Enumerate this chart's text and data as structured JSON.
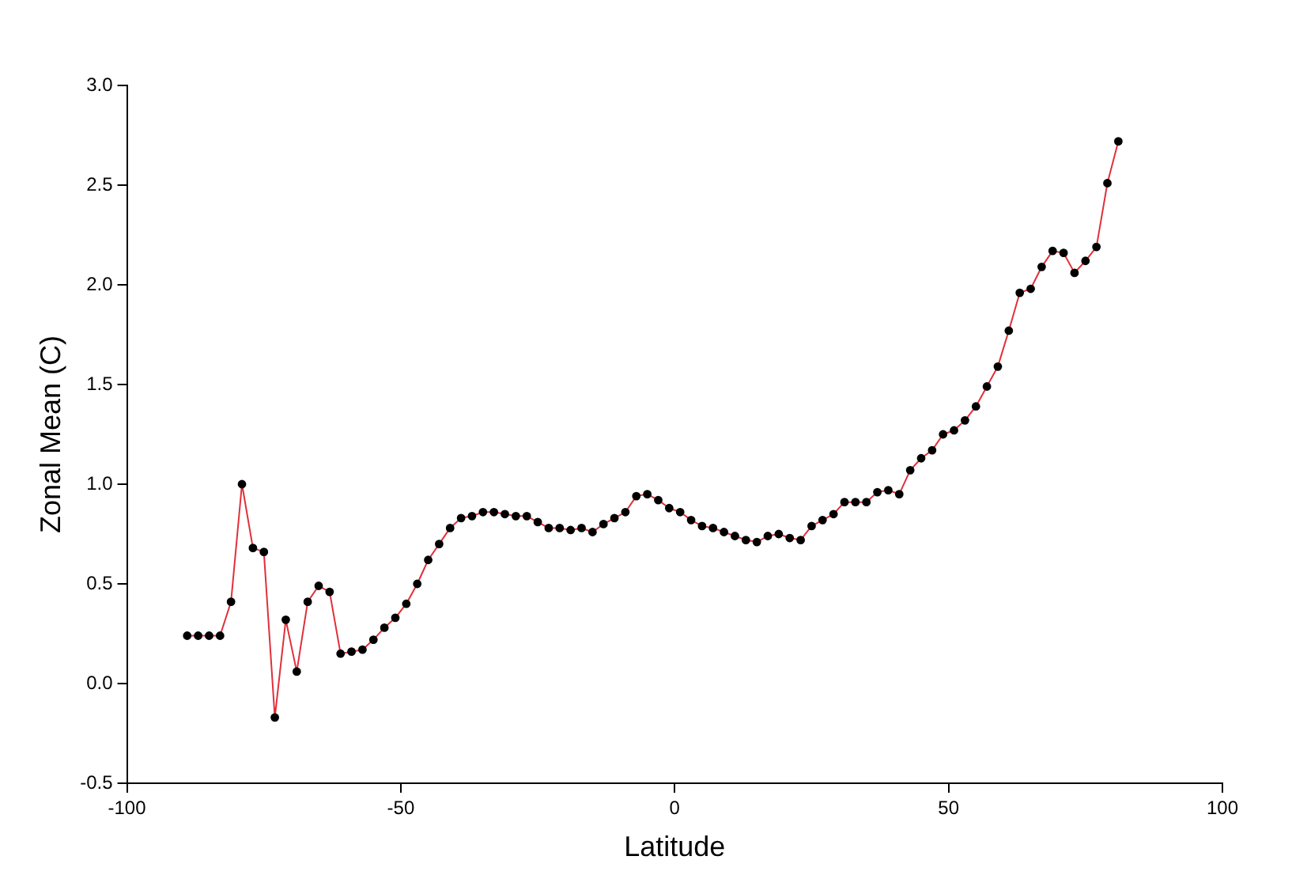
{
  "chart_data": {
    "type": "line",
    "xlabel": "Latitude",
    "ylabel": "Zonal Mean (C)",
    "x": [
      -89,
      -87,
      -85,
      -83,
      -81,
      -79,
      -77,
      -75,
      -73,
      -71,
      -69,
      -67,
      -65,
      -63,
      -61,
      -59,
      -57,
      -55,
      -53,
      -51,
      -49,
      -47,
      -45,
      -43,
      -41,
      -39,
      -37,
      -35,
      -33,
      -31,
      -29,
      -27,
      -25,
      -23,
      -21,
      -19,
      -17,
      -15,
      -13,
      -11,
      -9,
      -7,
      -5,
      -3,
      -1,
      1,
      3,
      5,
      7,
      9,
      11,
      13,
      15,
      17,
      19,
      21,
      23,
      25,
      27,
      29,
      31,
      33,
      35,
      37,
      39,
      41,
      43,
      45,
      47,
      49,
      51,
      53,
      55,
      57,
      59,
      61,
      63,
      65,
      67,
      69,
      71,
      73,
      75,
      77,
      79,
      81
    ],
    "series": [
      {
        "color": "#e0303a",
        "values": [
          0.24,
          0.24,
          0.24,
          0.24,
          0.41,
          1.0,
          0.68,
          0.66,
          -0.17,
          0.32,
          0.06,
          0.41,
          0.49,
          0.46,
          0.15,
          0.16,
          0.17,
          0.22,
          0.28,
          0.33,
          0.4,
          0.5,
          0.62,
          0.7,
          0.78,
          0.83,
          0.84,
          0.86,
          0.86,
          0.85,
          0.84,
          0.84,
          0.81,
          0.78,
          0.78,
          0.77,
          0.78,
          0.76,
          0.8,
          0.83,
          0.86,
          0.94,
          0.95,
          0.92,
          0.88,
          0.86,
          0.82,
          0.79,
          0.78,
          0.76,
          0.74,
          0.72,
          0.71,
          0.74,
          0.75,
          0.73,
          0.72,
          0.79,
          0.82,
          0.85,
          0.91,
          0.91,
          0.91,
          0.96,
          0.97,
          0.95,
          1.07,
          1.13,
          1.17,
          1.25,
          1.27,
          1.32,
          1.39,
          1.49,
          1.59,
          1.77,
          1.96,
          1.98,
          2.09,
          2.17,
          2.16,
          2.06,
          2.12,
          2.19,
          2.51,
          2.72
        ]
      }
    ],
    "xlim": [
      -100,
      100
    ],
    "xticks": [
      -100,
      -50,
      0,
      50,
      100
    ],
    "ylim": [
      -0.5,
      3.0
    ],
    "yticks": [
      -0.5,
      {
        "value": 0,
        "label": "0.0"
      },
      0.5,
      {
        "value": 1,
        "label": "1.0"
      },
      1.5,
      {
        "value": 2,
        "label": "2.0"
      },
      2.5,
      {
        "value": 3,
        "label": "3.0"
      }
    ],
    "grid": false,
    "legend": false,
    "marker": "circle",
    "line_style": "solid"
  }
}
